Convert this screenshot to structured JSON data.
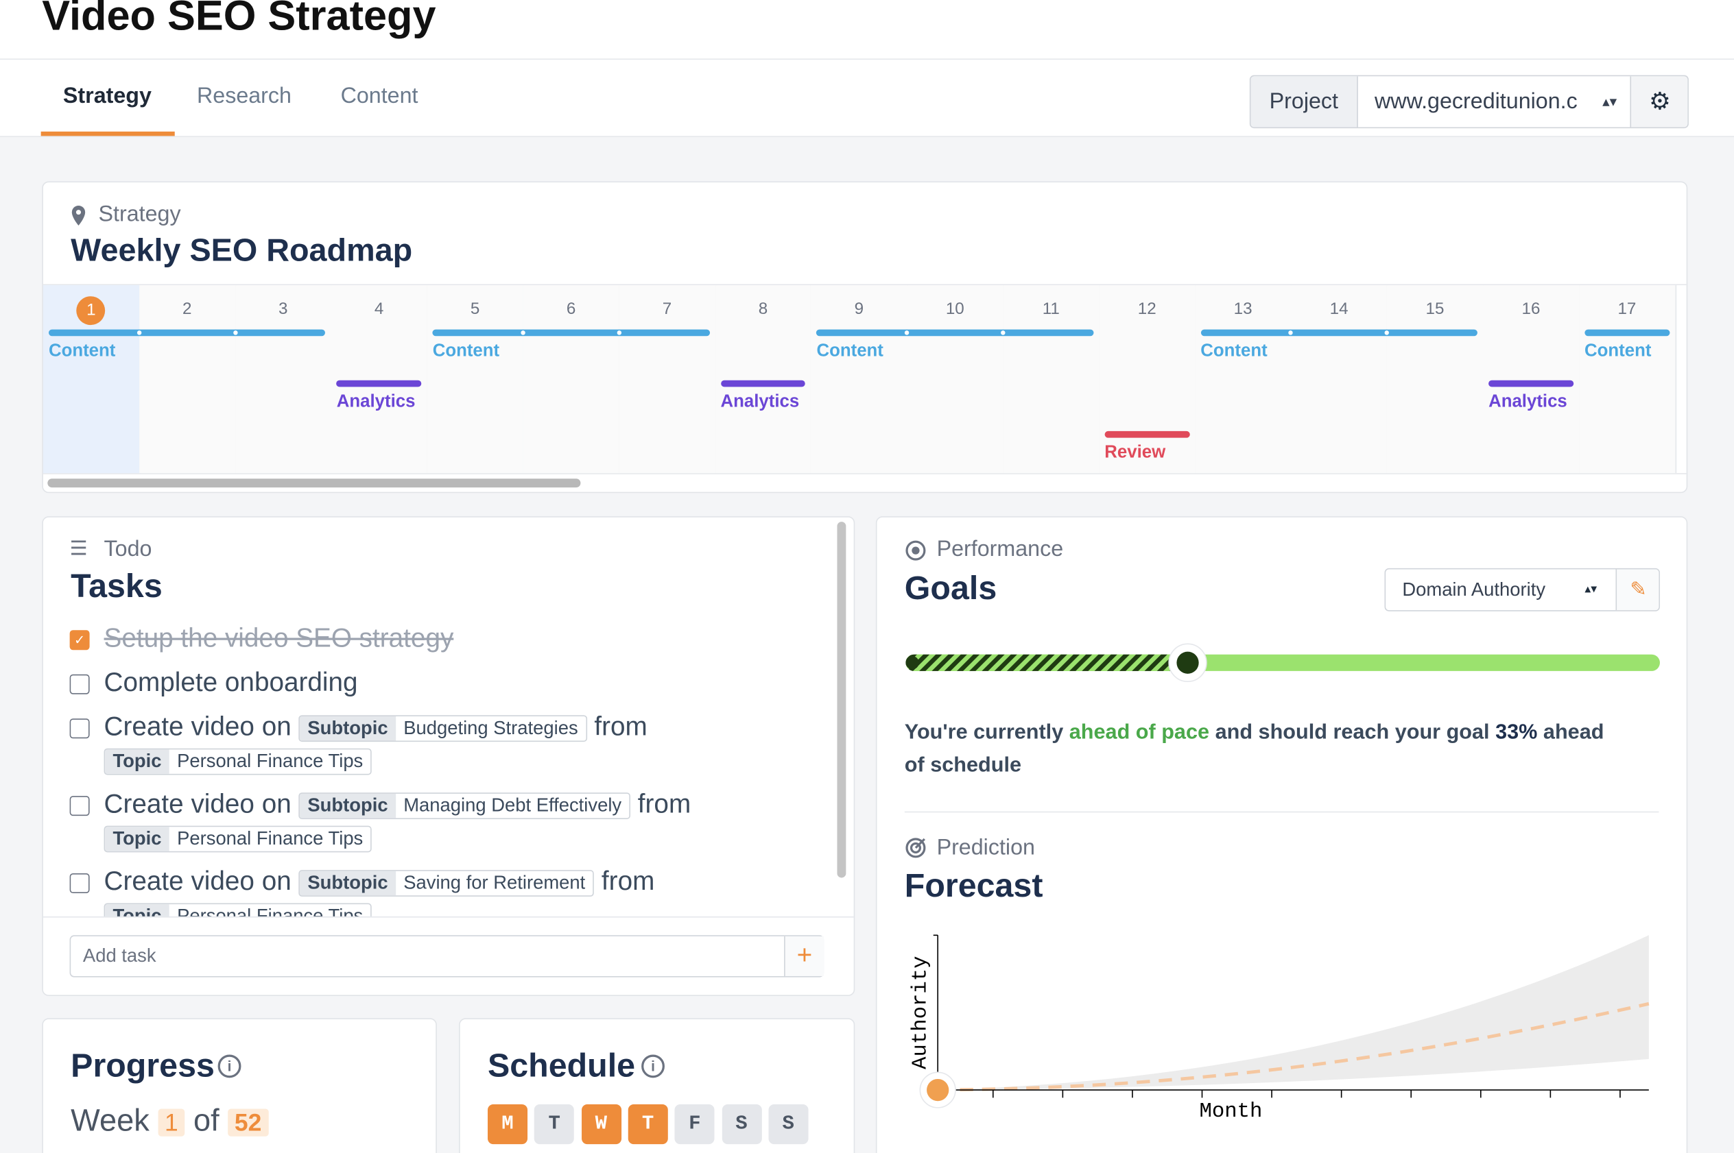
{
  "header": {
    "title": "Video SEO Strategy"
  },
  "tabs": [
    "Strategy",
    "Research",
    "Content"
  ],
  "project": {
    "label": "Project",
    "value": "www.gecreditunion.c"
  },
  "roadmap": {
    "section": "Strategy",
    "title": "Weekly SEO Roadmap",
    "weeks": [
      "1",
      "2",
      "3",
      "4",
      "5",
      "6",
      "7",
      "8",
      "9",
      "10",
      "11",
      "12",
      "13",
      "14",
      "15",
      "16",
      "17"
    ],
    "events": [
      {
        "label": "Content",
        "start": 1,
        "end": 3
      },
      {
        "label": "Analytics",
        "start": 4,
        "end": 4
      },
      {
        "label": "Content",
        "start": 5,
        "end": 7
      },
      {
        "label": "Analytics",
        "start": 8,
        "end": 8
      },
      {
        "label": "Content",
        "start": 9,
        "end": 11
      },
      {
        "label": "Review",
        "start": 12,
        "end": 12
      },
      {
        "label": "Content",
        "start": 13,
        "end": 15
      },
      {
        "label": "Analytics",
        "start": 16,
        "end": 16
      },
      {
        "label": "Content",
        "start": 17,
        "end": 17
      }
    ]
  },
  "todo": {
    "section": "Todo",
    "title": "Tasks",
    "tasks": [
      {
        "text": "Setup the video SEO strategy",
        "done": true
      },
      {
        "text": "Complete onboarding",
        "done": false
      },
      {
        "text": "Create video on",
        "subtopic_label": "Subtopic",
        "subtopic": "Budgeting Strategies",
        "from": "from",
        "topic_label": "Topic",
        "topic": "Personal Finance Tips",
        "done": false
      },
      {
        "text": "Create video on",
        "subtopic_label": "Subtopic",
        "subtopic": "Managing Debt Effectively",
        "from": "from",
        "topic_label": "Topic",
        "topic": "Personal Finance Tips",
        "done": false
      },
      {
        "text": "Create video on",
        "subtopic_label": "Subtopic",
        "subtopic": "Saving for Retirement",
        "from": "from",
        "topic_label": "Topic",
        "topic": "Personal Finance Tips",
        "done": false
      }
    ],
    "add_placeholder": "Add task"
  },
  "performance": {
    "section": "Performance",
    "title": "Goals",
    "metric": "Domain Authority",
    "message": {
      "before": "You're currently",
      "highlight": "ahead of pace",
      "middle": "and should reach your goal",
      "amount": "33%",
      "after": "ahead of schedule"
    }
  },
  "prediction": {
    "section": "Prediction",
    "title": "Forecast",
    "y_label": "Authority",
    "x_label": "Month"
  },
  "progress": {
    "title": "Progress",
    "week_word": "Week",
    "current": "1",
    "of": "of",
    "total": "52"
  },
  "schedule": {
    "title": "Schedule",
    "days": [
      {
        "label": "M",
        "active": true
      },
      {
        "label": "T",
        "active": false
      },
      {
        "label": "W",
        "active": true
      },
      {
        "label": "T",
        "active": true
      },
      {
        "label": "F",
        "active": false
      },
      {
        "label": "S",
        "active": false
      },
      {
        "label": "S",
        "active": false
      }
    ]
  }
}
